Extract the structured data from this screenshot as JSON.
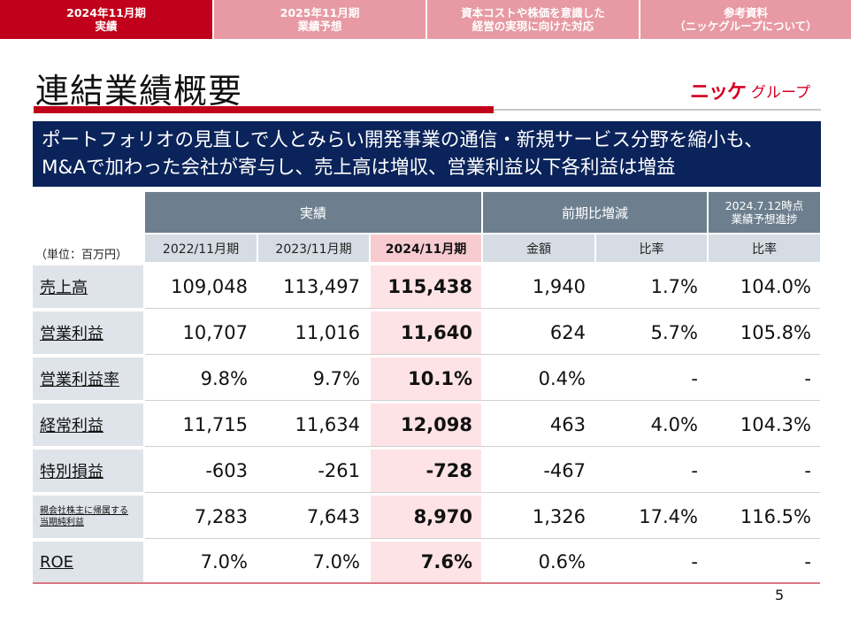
{
  "tabs": [
    {
      "line1": "2024年11月期",
      "line2": "実績",
      "active": true
    },
    {
      "line1": "2025年11月期",
      "line2": "業績予想",
      "active": false
    },
    {
      "line1": "資本コストや株価を意識した",
      "line2": "経営の実現に向けた対応",
      "active": false
    },
    {
      "line1": "参考資料",
      "line2": "（ニッケグループについて）",
      "active": false
    }
  ],
  "title": "連結業績概要",
  "logo": {
    "mark": "ニッケ",
    "text": "グループ"
  },
  "banner": {
    "line1": "ポートフォリオの見直しで人とみらい開発事業の通信・新規サービス分野を縮小も、",
    "line2": "M&Aで加わった会社が寄与し、売上高は増収、営業利益以下各利益は増益"
  },
  "table": {
    "unit_label": "（単位：百万円）",
    "group_headers": {
      "actual": "実績",
      "yoy": "前期比増減",
      "progress_line1": "2024.7.12時点",
      "progress_line2": "業績予想進捗"
    },
    "sub_headers": [
      "2022/11月期",
      "2023/11月期",
      "2024/11月期",
      "金額",
      "比率",
      "比率"
    ],
    "rows": [
      {
        "label": "売上高",
        "values": [
          "109,048",
          "113,497",
          "115,438",
          "1,940",
          "1.7%",
          "104.0%"
        ]
      },
      {
        "label": "営業利益",
        "values": [
          "10,707",
          "11,016",
          "11,640",
          "624",
          "5.7%",
          "105.8%"
        ]
      },
      {
        "label": "営業利益率",
        "values": [
          "9.8%",
          "9.7%",
          "10.1%",
          "0.4%",
          "-",
          "-"
        ]
      },
      {
        "label": "経常利益",
        "values": [
          "11,715",
          "11,634",
          "12,098",
          "463",
          "4.0%",
          "104.3%"
        ]
      },
      {
        "label": "特別損益",
        "values": [
          "-603",
          "-261",
          "-728",
          "-467",
          "-",
          "-"
        ]
      },
      {
        "label": "親会社株主に帰属する当期純利益",
        "label_line1": "親会社株主に帰属する",
        "label_line2": "当期純利益",
        "values": [
          "7,283",
          "7,643",
          "8,970",
          "1,326",
          "17.4%",
          "116.5%"
        ]
      },
      {
        "label": "ROE",
        "values": [
          "7.0%",
          "7.0%",
          "7.6%",
          "0.6%",
          "-",
          "-"
        ]
      }
    ]
  },
  "page_number": "5"
}
